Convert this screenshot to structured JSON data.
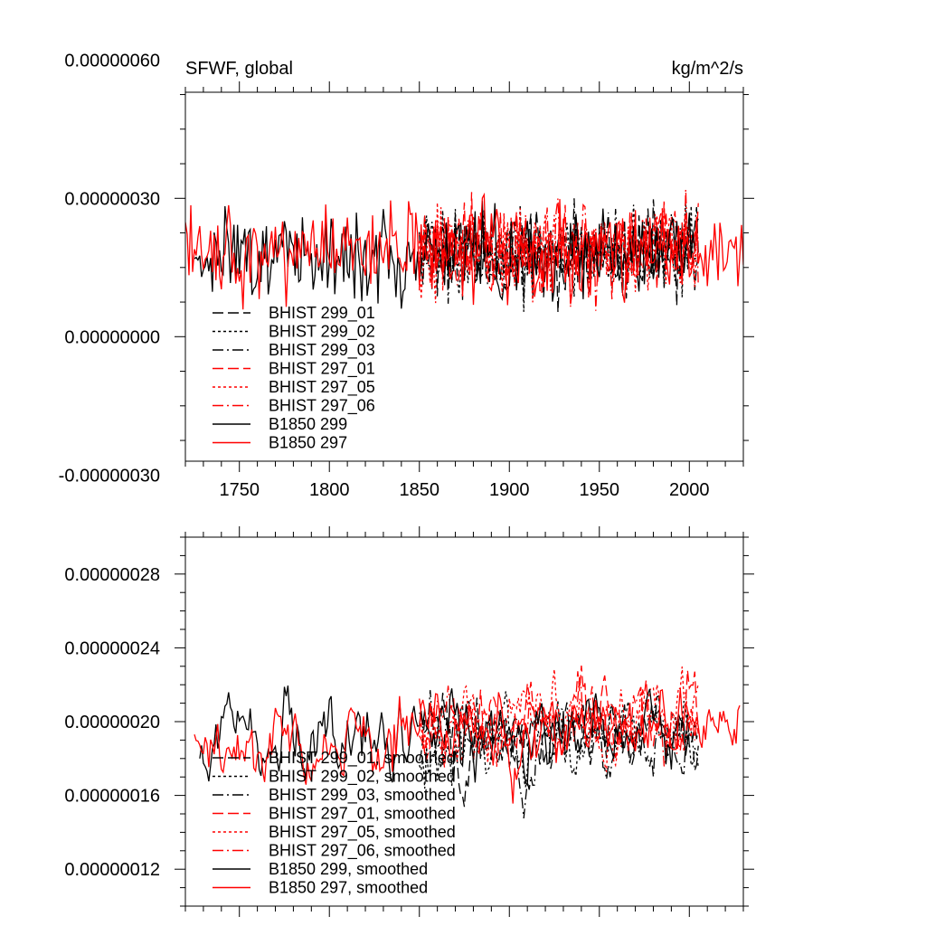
{
  "chart_data": [
    {
      "type": "line",
      "title": "SFWF, global",
      "units": "kg/m^2/s",
      "xlim": [
        1720,
        2030
      ],
      "ylim": [
        -2.7e-07,
        5.3e-07
      ],
      "xticks": [
        1750,
        1800,
        1850,
        1900,
        1950,
        2000
      ],
      "yticks": [
        -3e-07,
        0.0,
        3e-07,
        6e-07
      ],
      "ytick_labels": [
        "-0.00000030",
        "0.00000000",
        "0.00000030",
        "0.00000060"
      ],
      "xtick_labels": [
        "1750",
        "1800",
        "1850",
        "1900",
        "1950",
        "2000"
      ],
      "series": [
        {
          "name": "BHIST 299_01",
          "color": "#000000",
          "dash": "dash",
          "start": 1850,
          "end": 2005,
          "mean": 1.8e-07,
          "amp": 1.4e-07,
          "seed": 11
        },
        {
          "name": "BHIST 299_02",
          "color": "#000000",
          "dash": "dot",
          "start": 1850,
          "end": 2005,
          "mean": 1.8e-07,
          "amp": 1.4e-07,
          "seed": 12
        },
        {
          "name": "BHIST 299_03",
          "color": "#000000",
          "dash": "dashdot",
          "start": 1850,
          "end": 2005,
          "mean": 1.8e-07,
          "amp": 1.4e-07,
          "seed": 13
        },
        {
          "name": "BHIST 297_01",
          "color": "#ff0000",
          "dash": "dash",
          "start": 1850,
          "end": 2005,
          "mean": 1.9e-07,
          "amp": 1.4e-07,
          "seed": 14
        },
        {
          "name": "BHIST 297_05",
          "color": "#ff0000",
          "dash": "dot",
          "start": 1850,
          "end": 2005,
          "mean": 1.9e-07,
          "amp": 1.4e-07,
          "seed": 15
        },
        {
          "name": "BHIST 297_06",
          "color": "#ff0000",
          "dash": "dashdot",
          "start": 1850,
          "end": 2005,
          "mean": 1.9e-07,
          "amp": 1.4e-07,
          "seed": 16
        },
        {
          "name": "B1850 299",
          "color": "#000000",
          "dash": "solid",
          "start": 1725,
          "end": 2005,
          "mean": 1.8e-07,
          "amp": 1.4e-07,
          "seed": 17
        },
        {
          "name": "B1850 297",
          "color": "#ff0000",
          "dash": "solid",
          "start": 1720,
          "end": 2030,
          "mean": 1.8e-07,
          "amp": 1.4e-07,
          "seed": 18
        }
      ]
    },
    {
      "type": "line",
      "xlim": [
        1720,
        2030
      ],
      "ylim": [
        1e-07,
        3e-07
      ],
      "xticks": [
        1750,
        1800,
        1850,
        1900,
        1950,
        2000
      ],
      "yticks": [
        1.2e-07,
        1.6e-07,
        2e-07,
        2.4e-07,
        2.8e-07
      ],
      "ytick_labels": [
        "0.00000012",
        "0.00000016",
        "0.00000020",
        "0.00000024",
        "0.00000028"
      ],
      "series": [
        {
          "name": "BHIST 299_01, smoothed",
          "color": "#000000",
          "dash": "dash",
          "start": 1850,
          "end": 2005,
          "mean": 1.9e-07,
          "amp": 3e-08,
          "seed": 21
        },
        {
          "name": "BHIST 299_02, smoothed",
          "color": "#000000",
          "dash": "dot",
          "start": 1850,
          "end": 2005,
          "mean": 1.9e-07,
          "amp": 3e-08,
          "seed": 22
        },
        {
          "name": "BHIST 299_03, smoothed",
          "color": "#000000",
          "dash": "dashdot",
          "start": 1850,
          "end": 2005,
          "mean": 1.9e-07,
          "amp": 3e-08,
          "seed": 23
        },
        {
          "name": "BHIST 297_01, smoothed",
          "color": "#ff0000",
          "dash": "dash",
          "start": 1850,
          "end": 2005,
          "mean": 2e-07,
          "amp": 3e-08,
          "seed": 24
        },
        {
          "name": "BHIST 297_05, smoothed",
          "color": "#ff0000",
          "dash": "dot",
          "start": 1850,
          "end": 2005,
          "mean": 2e-07,
          "amp": 3e-08,
          "seed": 25
        },
        {
          "name": "BHIST 297_06, smoothed",
          "color": "#ff0000",
          "dash": "dashdot",
          "start": 1850,
          "end": 2005,
          "mean": 2e-07,
          "amp": 3e-08,
          "seed": 26
        },
        {
          "name": "B1850 299, smoothed",
          "color": "#000000",
          "dash": "solid",
          "start": 1728,
          "end": 2000,
          "mean": 1.9e-07,
          "amp": 3e-08,
          "seed": 27
        },
        {
          "name": "B1850 297, smoothed",
          "color": "#ff0000",
          "dash": "solid",
          "start": 1725,
          "end": 2028,
          "mean": 1.9e-07,
          "amp": 3e-08,
          "seed": 28
        }
      ]
    }
  ]
}
